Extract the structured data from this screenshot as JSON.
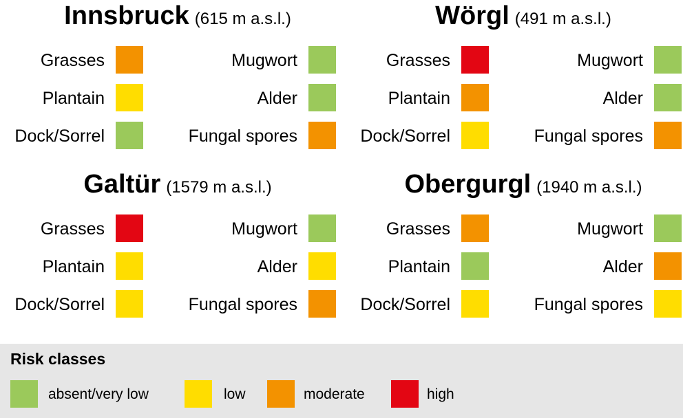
{
  "stations": [
    {
      "name": "Innsbruck",
      "altitude": "(615 m a.s.l.)",
      "items": [
        {
          "label": "Grasses",
          "risk": 2
        },
        {
          "label": "Plantain",
          "risk": 1
        },
        {
          "label": "Dock/Sorrel",
          "risk": 0
        },
        {
          "label": "Mugwort",
          "risk": 0
        },
        {
          "label": "Alder",
          "risk": 0
        },
        {
          "label": "Fungal spores",
          "risk": 2
        }
      ]
    },
    {
      "name": "Wörgl",
      "altitude": "(491 m a.s.l.)",
      "items": [
        {
          "label": "Grasses",
          "risk": 3
        },
        {
          "label": "Plantain",
          "risk": 2
        },
        {
          "label": "Dock/Sorrel",
          "risk": 1
        },
        {
          "label": "Mugwort",
          "risk": 0
        },
        {
          "label": "Alder",
          "risk": 0
        },
        {
          "label": "Fungal spores",
          "risk": 2
        }
      ]
    },
    {
      "name": "Galtür",
      "altitude": "(1579 m a.s.l.)",
      "items": [
        {
          "label": "Grasses",
          "risk": 3
        },
        {
          "label": "Plantain",
          "risk": 1
        },
        {
          "label": "Dock/Sorrel",
          "risk": 1
        },
        {
          "label": "Mugwort",
          "risk": 0
        },
        {
          "label": "Alder",
          "risk": 1
        },
        {
          "label": "Fungal spores",
          "risk": 2
        }
      ]
    },
    {
      "name": "Obergurgl",
      "altitude": "(1940 m a.s.l.)",
      "items": [
        {
          "label": "Grasses",
          "risk": 2
        },
        {
          "label": "Plantain",
          "risk": 0
        },
        {
          "label": "Dock/Sorrel",
          "risk": 1
        },
        {
          "label": "Mugwort",
          "risk": 0
        },
        {
          "label": "Alder",
          "risk": 2
        },
        {
          "label": "Fungal spores",
          "risk": 1
        }
      ]
    }
  ],
  "legend": {
    "title": "Risk classes",
    "classes": [
      {
        "label": "absent/very low",
        "color": "#9bc95b"
      },
      {
        "label": "low",
        "color": "#ffdd00"
      },
      {
        "label": "moderate",
        "color": "#f39200"
      },
      {
        "label": "high",
        "color": "#e30613"
      }
    ]
  }
}
